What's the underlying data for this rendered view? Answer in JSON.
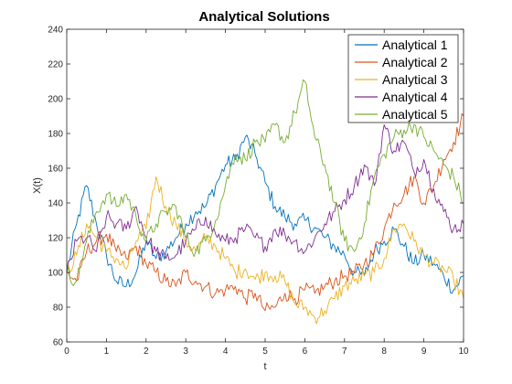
{
  "chart_data": {
    "type": "line",
    "title": "Analytical Solutions",
    "xlabel": "t",
    "ylabel": "X(t)",
    "xlim": [
      0,
      10
    ],
    "ylim": [
      60,
      240
    ],
    "xticks": [
      "0",
      "1",
      "2",
      "3",
      "4",
      "5",
      "6",
      "7",
      "8",
      "9",
      "10"
    ],
    "yticks": [
      "60",
      "80",
      "100",
      "120",
      "140",
      "160",
      "180",
      "200",
      "220",
      "240"
    ],
    "grid": false,
    "legend": "top-right",
    "x": [
      0,
      0.25,
      0.5,
      0.75,
      1,
      1.25,
      1.5,
      1.75,
      2,
      2.25,
      2.5,
      2.75,
      3,
      3.25,
      3.5,
      3.75,
      4,
      4.25,
      4.5,
      4.75,
      5,
      5.25,
      5.5,
      5.75,
      6,
      6.25,
      6.5,
      6.75,
      7,
      7.25,
      7.5,
      7.75,
      8,
      8.25,
      8.5,
      8.75,
      9,
      9.25,
      9.5,
      9.75,
      10
    ],
    "series": [
      {
        "name": "Analytical 1",
        "color": "#0072BD",
        "values": [
          100,
          128,
          150,
          128,
          110,
          95,
          92,
          100,
          118,
          108,
          112,
          120,
          128,
          135,
          138,
          150,
          162,
          165,
          178,
          168,
          152,
          138,
          132,
          128,
          130,
          126,
          120,
          115,
          110,
          100,
          98,
          112,
          118,
          125,
          115,
          105,
          110,
          105,
          98,
          90,
          98
        ]
      },
      {
        "name": "Analytical 2",
        "color": "#D95319",
        "values": [
          100,
          95,
          112,
          118,
          122,
          112,
          108,
          115,
          105,
          100,
          95,
          92,
          100,
          95,
          92,
          88,
          90,
          92,
          85,
          88,
          78,
          80,
          88,
          85,
          90,
          88,
          92,
          95,
          98,
          100,
          105,
          112,
          125,
          140,
          145,
          155,
          140,
          150,
          165,
          175,
          190
        ]
      },
      {
        "name": "Analytical 3",
        "color": "#EDB120",
        "values": [
          100,
          110,
          128,
          120,
          112,
          108,
          102,
          118,
          125,
          155,
          138,
          128,
          118,
          112,
          120,
          115,
          108,
          100,
          102,
          96,
          100,
          98,
          95,
          82,
          80,
          74,
          78,
          85,
          92,
          95,
          98,
          100,
          108,
          125,
          128,
          118,
          110,
          105,
          102,
          96,
          85
        ]
      },
      {
        "name": "Analytical 4",
        "color": "#7E2F8E",
        "values": [
          100,
          118,
          120,
          112,
          132,
          128,
          125,
          138,
          120,
          112,
          108,
          110,
          118,
          125,
          132,
          122,
          118,
          120,
          125,
          120,
          115,
          125,
          122,
          118,
          112,
          120,
          128,
          135,
          142,
          150,
          162,
          150,
          185,
          170,
          175,
          158,
          165,
          148,
          135,
          125,
          128
        ]
      },
      {
        "name": "Analytical 5",
        "color": "#77AC30",
        "values": [
          100,
          95,
          118,
          135,
          145,
          138,
          145,
          132,
          118,
          128,
          135,
          138,
          120,
          112,
          118,
          130,
          150,
          168,
          165,
          175,
          175,
          185,
          175,
          192,
          210,
          178,
          162,
          140,
          118,
          112,
          128,
          155,
          168,
          178,
          182,
          185,
          178,
          170,
          162,
          155,
          140
        ]
      }
    ]
  }
}
